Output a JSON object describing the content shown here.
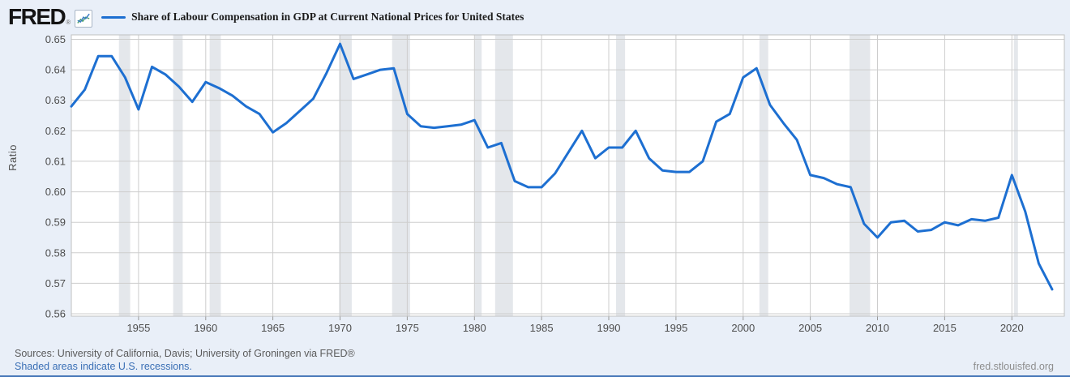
{
  "header": {
    "logo_text": "FRED",
    "registered_mark": "®"
  },
  "footer": {
    "sources": "Sources: University of California, Davis; University of Groningen via FRED®",
    "recession_note": "Shaded areas indicate U.S. recessions.",
    "site": "fred.stlouisfed.org"
  },
  "colors": {
    "series_line": "#1d6fd1",
    "recession_band": "#e4e7eb",
    "background": "#e9eff8",
    "plot_background": "#ffffff",
    "gridline": "#cdcdcd",
    "frame": "#c0c0c0",
    "tick": "#999999",
    "axis_text": "#4d4d4d",
    "link_blue": "#3a6fb5",
    "bottom_border": "#4677b8"
  },
  "chart_data": {
    "type": "line",
    "title": "Share of Labour Compensation in GDP at Current National Prices for United States",
    "xlabel": "",
    "ylabel": "Ratio",
    "ylim": [
      0.56,
      0.65
    ],
    "ytick_interval": 0.01,
    "xticks": [
      1955,
      1960,
      1965,
      1970,
      1975,
      1980,
      1985,
      1990,
      1995,
      2000,
      2005,
      2010,
      2015,
      2020
    ],
    "grid": true,
    "legend_position": "top-left",
    "years": [
      1950,
      1951,
      1952,
      1953,
      1954,
      1955,
      1956,
      1957,
      1958,
      1959,
      1960,
      1961,
      1962,
      1963,
      1964,
      1965,
      1966,
      1967,
      1968,
      1969,
      1970,
      1971,
      1972,
      1973,
      1974,
      1975,
      1976,
      1977,
      1978,
      1979,
      1980,
      1981,
      1982,
      1983,
      1984,
      1985,
      1986,
      1987,
      1988,
      1989,
      1990,
      1991,
      1992,
      1993,
      1994,
      1995,
      1996,
      1997,
      1998,
      1999,
      2000,
      2001,
      2002,
      2003,
      2004,
      2005,
      2006,
      2007,
      2008,
      2009,
      2010,
      2011,
      2012,
      2013,
      2014,
      2015,
      2016,
      2017,
      2018,
      2019,
      2020,
      2021,
      2022,
      2023
    ],
    "values": [
      0.628,
      0.6335,
      0.6445,
      0.6445,
      0.6375,
      0.627,
      0.641,
      0.6385,
      0.6345,
      0.6295,
      0.636,
      0.634,
      0.6315,
      0.628,
      0.6255,
      0.6195,
      0.6225,
      0.6265,
      0.6305,
      0.639,
      0.6485,
      0.637,
      0.6385,
      0.64,
      0.6405,
      0.6255,
      0.6215,
      0.621,
      0.6215,
      0.622,
      0.6235,
      0.6145,
      0.616,
      0.6035,
      0.6015,
      0.6015,
      0.606,
      0.613,
      0.62,
      0.611,
      0.6145,
      0.6145,
      0.62,
      0.611,
      0.607,
      0.6065,
      0.6065,
      0.61,
      0.623,
      0.6255,
      0.6375,
      0.6405,
      0.6285,
      0.6225,
      0.617,
      0.6055,
      0.6045,
      0.6025,
      0.6015,
      0.5895,
      0.585,
      0.59,
      0.5905,
      0.587,
      0.5875,
      0.59,
      0.589,
      0.591,
      0.5905,
      0.5915,
      0.6055,
      0.5935,
      0.5765,
      0.568
    ],
    "recession_bands": [
      [
        1953.54,
        1954.38
      ],
      [
        1957.58,
        1958.29
      ],
      [
        1960.29,
        1961.12
      ],
      [
        1969.92,
        1970.87
      ],
      [
        1973.87,
        1975.21
      ],
      [
        1980.04,
        1980.54
      ],
      [
        1981.54,
        1982.87
      ],
      [
        1990.54,
        1991.21
      ],
      [
        2001.21,
        2001.87
      ],
      [
        2007.92,
        2009.45
      ],
      [
        2020.15,
        2020.45
      ]
    ]
  }
}
